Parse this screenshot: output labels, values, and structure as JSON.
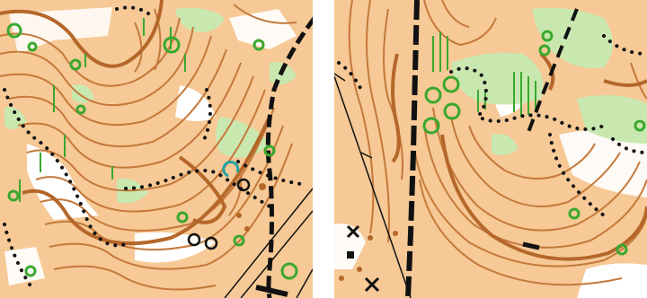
{
  "app": {
    "kind": "orienteering-map-comparison"
  },
  "colors": {
    "paper": "#f6c996",
    "open_land": "#ffffff",
    "contour": "#c4793b",
    "index_contour": "#b5672a",
    "vegetation": "#c9e8b0",
    "vegetation_dark": "#8fd17a",
    "green_feature": "#3aa82e",
    "track": "#111111",
    "teal_marker": "#1fa3a3"
  },
  "maps": [
    {
      "id": "left",
      "symbols": [
        "contours",
        "open-land",
        "green-vegetation",
        "black-dotted-path",
        "black-road",
        "thin-black-lines",
        "green-circles",
        "black-circles"
      ]
    },
    {
      "id": "right",
      "symbols": [
        "contours",
        "open-land",
        "green-vegetation",
        "green-vertical-stripes",
        "black-dotted-path",
        "black-dashed-road",
        "thin-black-line",
        "black-crosses",
        "green-circles"
      ]
    }
  ]
}
